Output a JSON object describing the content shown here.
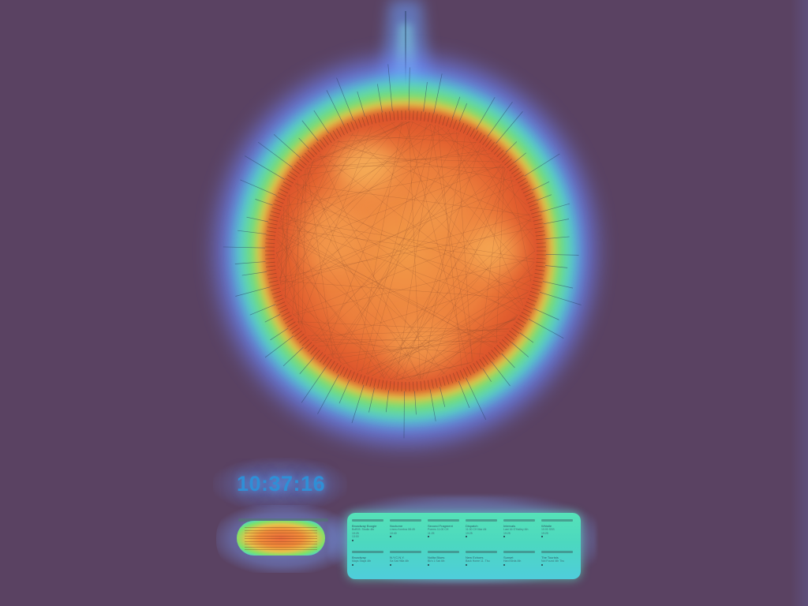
{
  "clock": {
    "time": "10:37:16"
  },
  "cards": [
    {
      "title": "Broadway Boogie",
      "line1": "BoB03: Studio 4th",
      "line2": "19:25",
      "line3": "13:00"
    },
    {
      "title": "Nocturne",
      "line1": "Linea d'ombra 08:45",
      "line2": "10:40",
      "line3": ""
    },
    {
      "title": "Second Fragment",
      "line1": "Poems 11:00 CH",
      "line2": "11:25",
      "line3": ""
    },
    {
      "title": "Dispatch",
      "line1": "11:00 CH Mar Alt",
      "line2": "19:25",
      "line3": ""
    },
    {
      "title": "Intervals",
      "line1": "Last 16 O'Halley 4th",
      "line2": "19:25",
      "line3": ""
    },
    {
      "title": "Whistle",
      "line1": "10:00 SSS",
      "line2": "19:25",
      "line3": ""
    },
    {
      "title": "Broadway",
      "line1": "Maps Stays 4th",
      "line2": "",
      "line3": ""
    },
    {
      "title": "N.Y.C.N.Y.",
      "line1": "Sa Sat Hilla 4th",
      "line2": "",
      "line3": ""
    },
    {
      "title": "Nolita Blues",
      "line1": "Bk's 1 Sat 4th",
      "line2": "",
      "line3": ""
    },
    {
      "title": "New Echoes",
      "line1": "Back Home 11. Thu",
      "line2": "",
      "line3": ""
    },
    {
      "title": "Sunset",
      "line1": "Hard Birds 4th",
      "line2": "",
      "line3": ""
    },
    {
      "title": "The Tourists",
      "line1": "Not Found 4th Thu",
      "line2": "",
      "line3": ""
    }
  ],
  "colors": {
    "background": "#5a4262",
    "core": "#f08a3e",
    "hot": "#e0592e",
    "ring_green": "#7ee26a",
    "ring_cyan": "#4fd6c2",
    "ring_blue": "#5aa4ff",
    "clock": "#2f8fd6"
  },
  "icons": {
    "graph-node-icon": "dot"
  }
}
